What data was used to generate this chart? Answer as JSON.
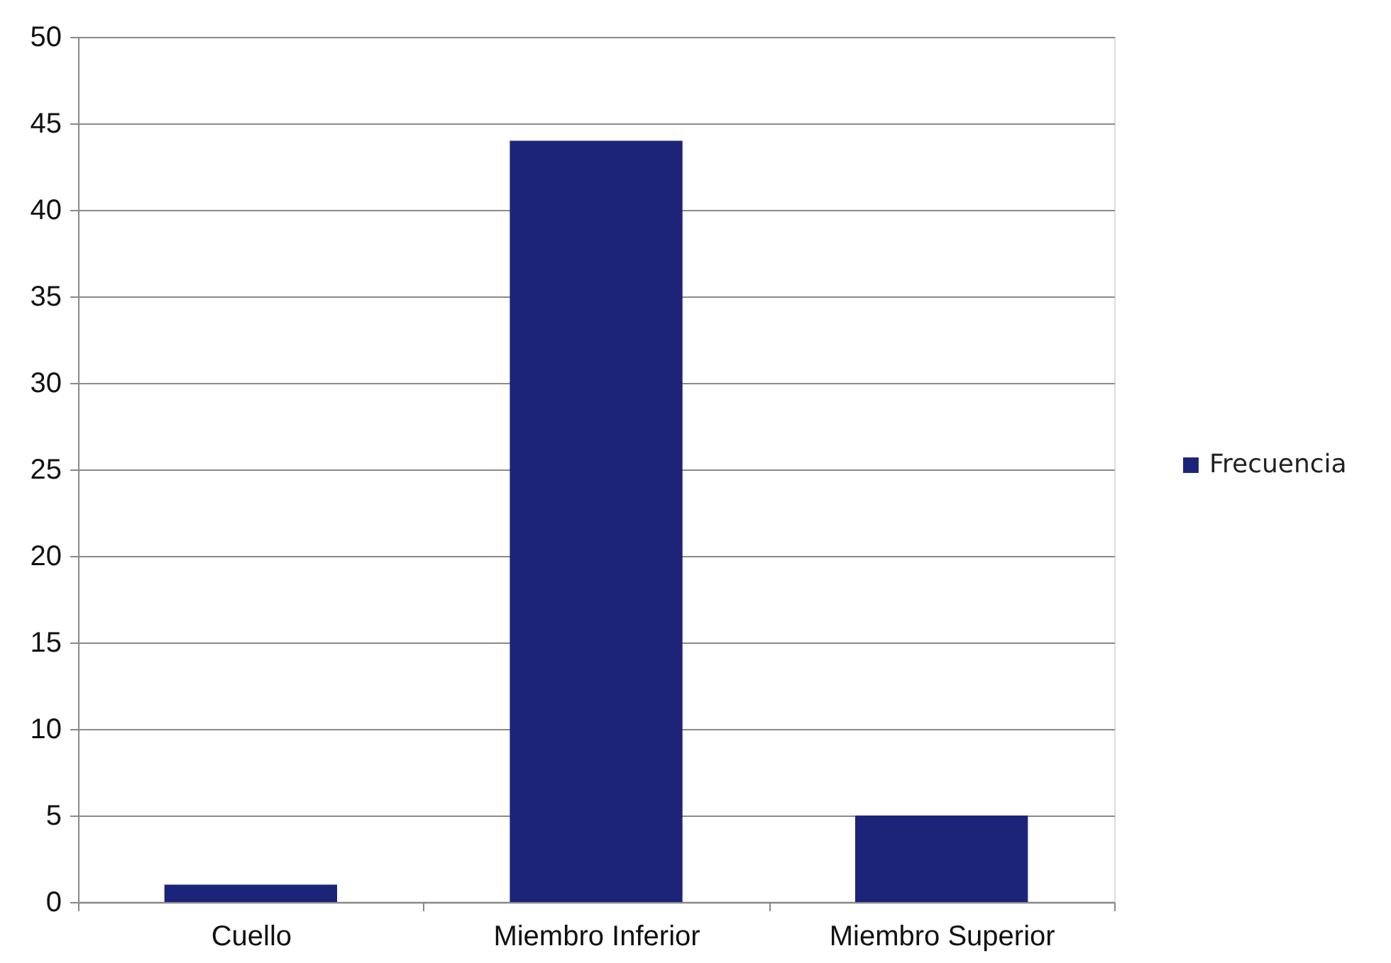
{
  "chart_data": {
    "type": "bar",
    "categories": [
      "Cuello",
      "Miembro Inferior",
      "Miembro Superior"
    ],
    "series": [
      {
        "name": "Frecuencia",
        "color": "#1c247a",
        "values": [
          1,
          44,
          5
        ]
      }
    ],
    "ylim": [
      0,
      50
    ],
    "yticks": [
      0,
      5,
      10,
      15,
      20,
      25,
      30,
      35,
      40,
      45,
      50
    ],
    "grid": "y",
    "legend": "right"
  }
}
